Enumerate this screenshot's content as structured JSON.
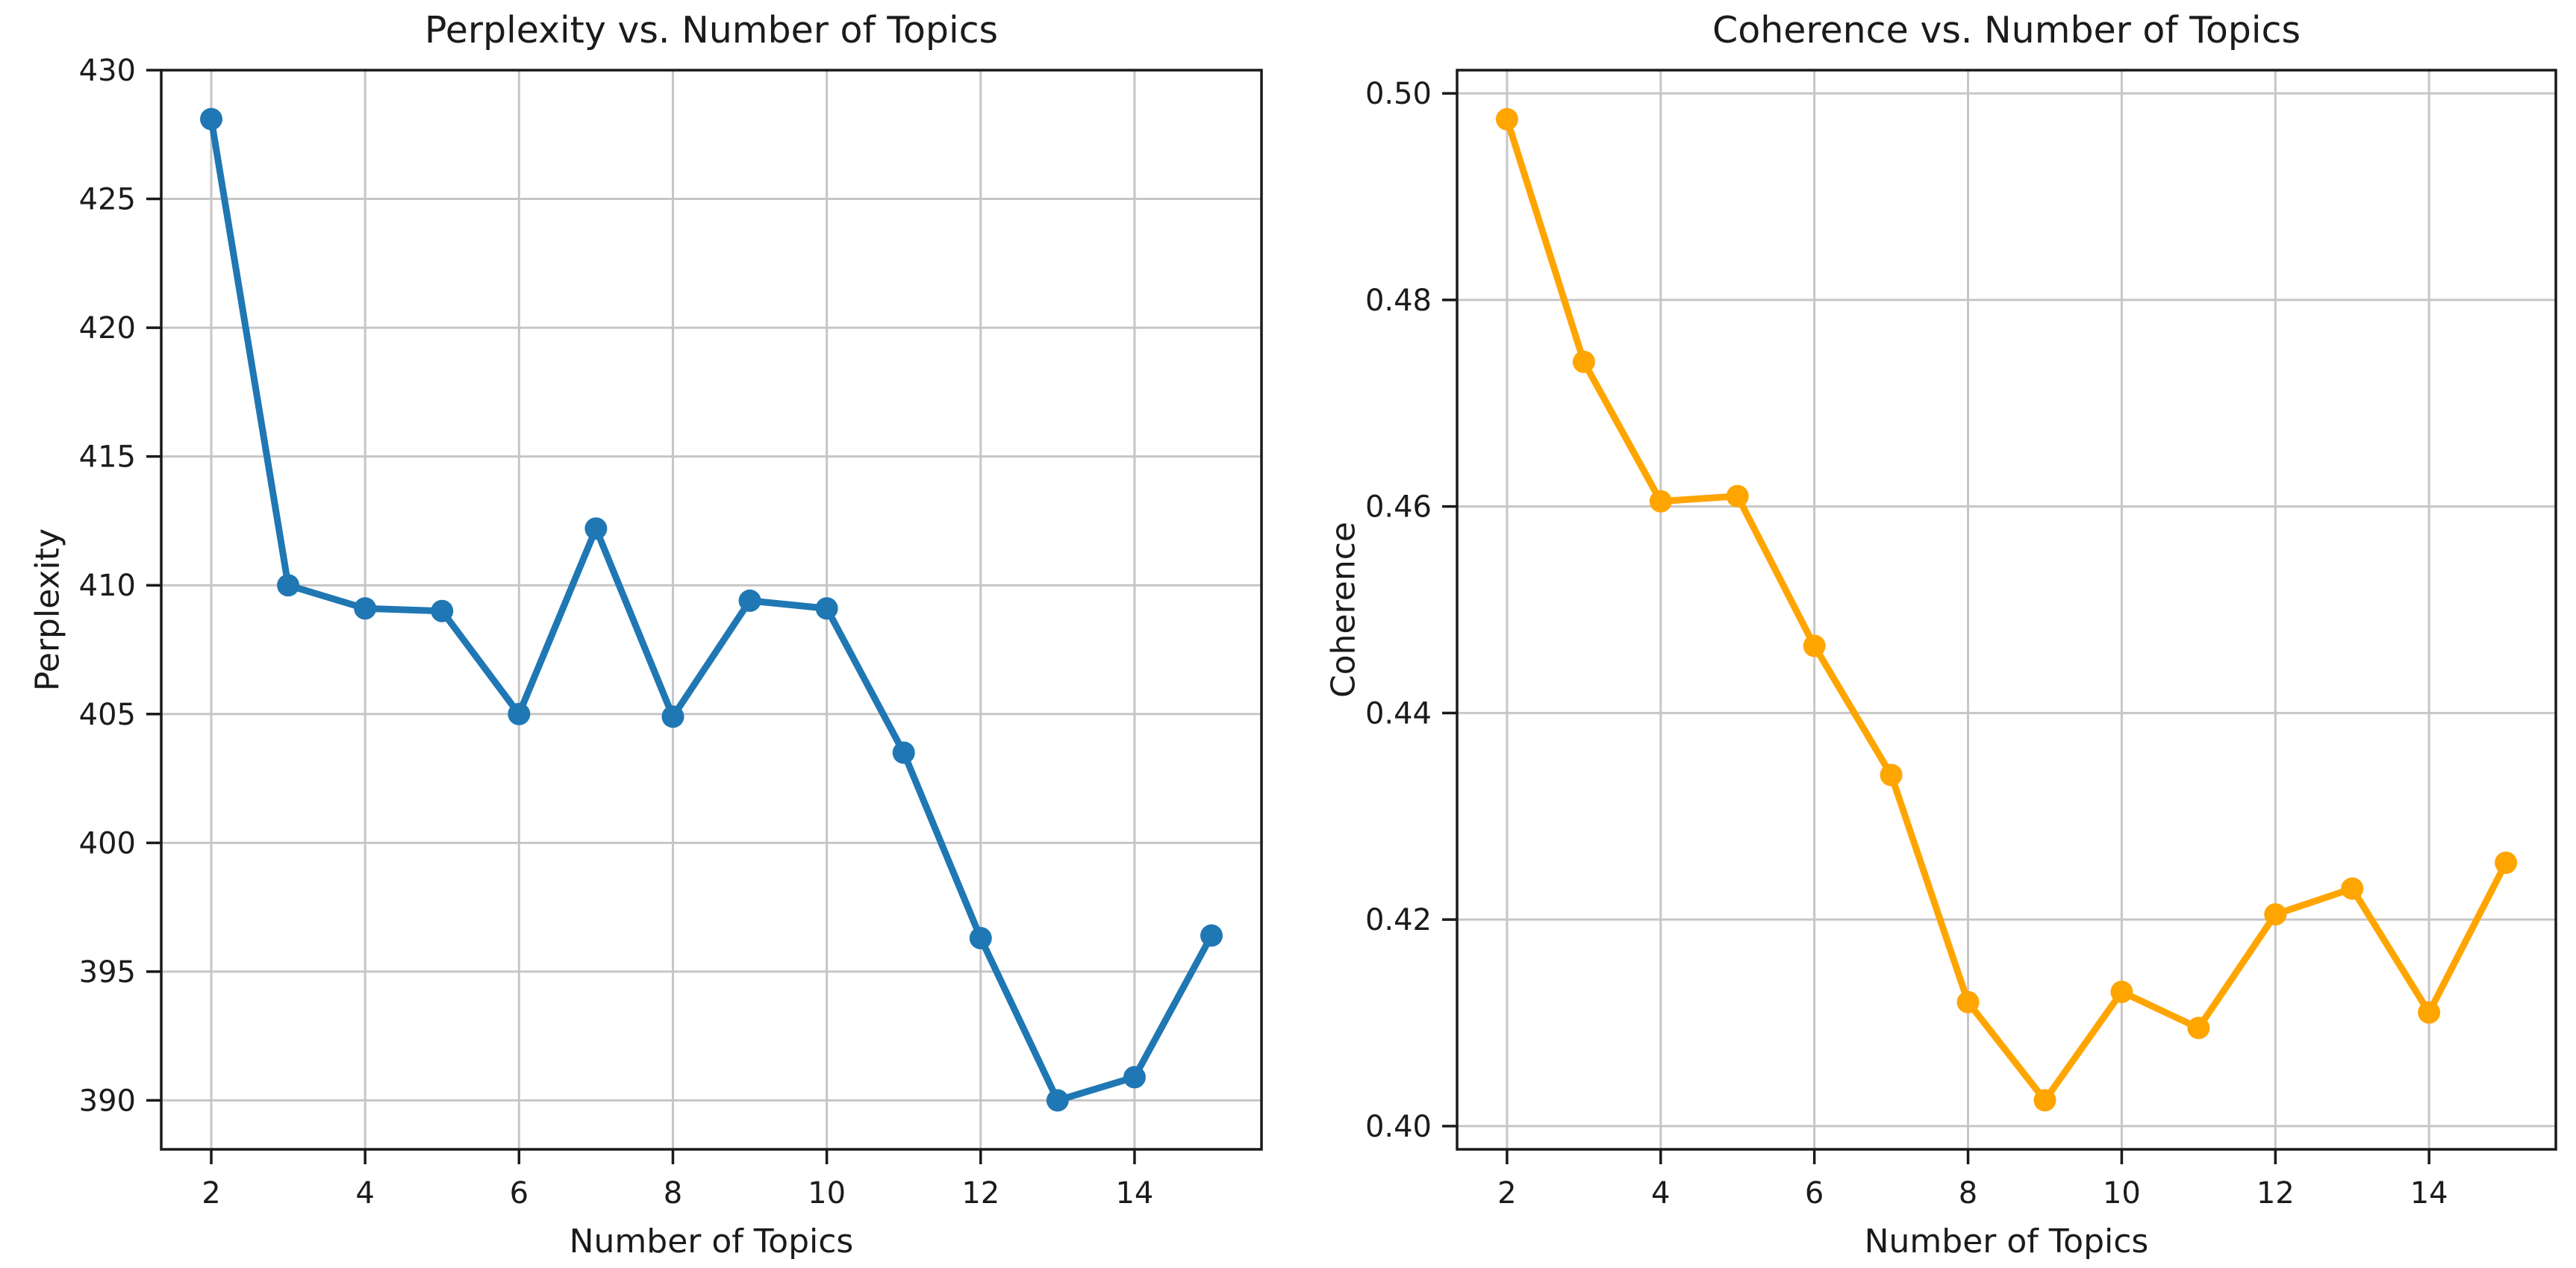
{
  "figure": {
    "background": "#ffffff",
    "text_color": "#1b1b1b",
    "grid_color": "#c6c6c6",
    "spine_color": "#1a1a1a"
  },
  "chart_data": [
    {
      "type": "line",
      "title": "Perplexity vs. Number of Topics",
      "xlabel": "Number of Topics",
      "ylabel": "Perplexity",
      "series_color": "#1f77b4",
      "marker": "o",
      "grid": true,
      "x": [
        2,
        3,
        4,
        5,
        6,
        7,
        8,
        9,
        10,
        11,
        12,
        13,
        14,
        15
      ],
      "values": [
        428.1,
        410.0,
        409.1,
        409.0,
        405.0,
        412.2,
        404.9,
        409.4,
        409.1,
        403.5,
        396.3,
        390.0,
        390.9,
        396.4
      ],
      "xlim": [
        1.35,
        15.65
      ],
      "ylim": [
        388.1,
        430.0
      ],
      "xtick_values": [
        2,
        4,
        6,
        8,
        10,
        12,
        14
      ],
      "xtick_labels": [
        "2",
        "4",
        "6",
        "8",
        "10",
        "12",
        "14"
      ],
      "ytick_values": [
        390,
        395,
        400,
        405,
        410,
        415,
        420,
        425,
        430
      ],
      "ytick_labels": [
        "390",
        "395",
        "400",
        "405",
        "410",
        "415",
        "420",
        "425",
        "430"
      ]
    },
    {
      "type": "line",
      "title": "Coherence vs. Number of Topics",
      "xlabel": "Number of Topics",
      "ylabel": "Coherence",
      "series_color": "#ffa500",
      "marker": "o",
      "grid": true,
      "x": [
        2,
        3,
        4,
        5,
        6,
        7,
        8,
        9,
        10,
        11,
        12,
        13,
        14,
        15
      ],
      "values": [
        0.4975,
        0.474,
        0.4605,
        0.461,
        0.4465,
        0.434,
        0.412,
        0.4025,
        0.413,
        0.4095,
        0.4205,
        0.423,
        0.411,
        0.4255
      ],
      "xlim": [
        1.35,
        15.65
      ],
      "ylim": [
        0.39775,
        0.50225
      ],
      "xtick_values": [
        2,
        4,
        6,
        8,
        10,
        12,
        14
      ],
      "xtick_labels": [
        "2",
        "4",
        "6",
        "8",
        "10",
        "12",
        "14"
      ],
      "ytick_values": [
        0.4,
        0.42,
        0.44,
        0.46,
        0.48,
        0.5
      ],
      "ytick_labels": [
        "0.40",
        "0.42",
        "0.44",
        "0.46",
        "0.48",
        "0.50"
      ]
    }
  ]
}
